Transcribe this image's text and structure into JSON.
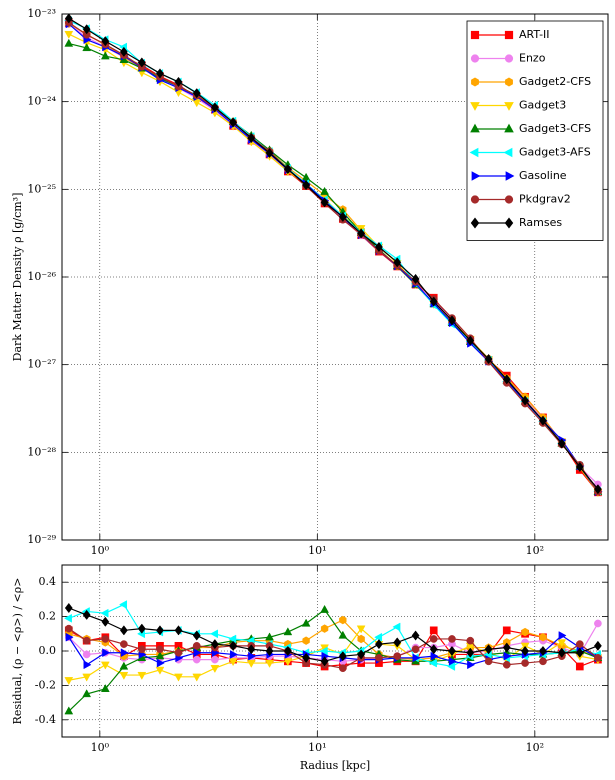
{
  "chart_data": [
    {
      "type": "line",
      "ylabel": "Dark Matter Density  ρ  [g/cm³]",
      "xlog": true,
      "ylog": true,
      "grid": true,
      "legend": "upper right",
      "xlim": [
        0.67,
        217
      ],
      "xticks": [
        {
          "value": 1,
          "label": "10⁰"
        },
        {
          "value": 10,
          "label": "10¹"
        },
        {
          "value": 100,
          "label": "10²"
        }
      ],
      "ylim": [
        1e-29,
        1e-23
      ],
      "yticks": [
        {
          "value": 1e-29,
          "label": "10⁻²⁹"
        },
        {
          "value": 1e-28,
          "label": "10⁻²⁸"
        },
        {
          "value": 1e-27,
          "label": "10⁻²⁷"
        },
        {
          "value": 1e-26,
          "label": "10⁻²⁶"
        },
        {
          "value": 1e-25,
          "label": "10⁻²⁵"
        },
        {
          "value": 1e-24,
          "label": "10⁻²⁴"
        },
        {
          "value": 1e-23,
          "label": "10⁻²³"
        }
      ],
      "x": [
        0.72,
        0.87,
        1.06,
        1.29,
        1.56,
        1.89,
        2.3,
        2.79,
        3.38,
        4.1,
        4.97,
        6.03,
        7.32,
        8.88,
        10.8,
        13.1,
        15.9,
        19.2,
        23.3,
        28.3,
        34.3,
        41.6,
        50.5,
        61.3,
        74.3,
        90.2,
        109,
        133,
        161,
        195
      ],
      "series": [
        {
          "name": "ART-II",
          "color": "#ff0000",
          "marker": "square",
          "values": [
            7.9e-24,
            5.8e-24,
            4.5e-24,
            3.2e-24,
            2.6e-24,
            1.95e-24,
            1.55e-24,
            1.13e-24,
            8.1e-25,
            5.3e-25,
            3.6e-25,
            2.5e-25,
            1.6e-25,
            1.09e-25,
            6.9e-26,
            4.6e-26,
            3e-26,
            1.95e-26,
            1.32e-26,
            8.2e-27,
            5.8e-27,
            3.1e-27,
            1.86e-27,
            1.13e-27,
            7.5e-28,
            4.3e-28,
            2.5e-28,
            1.3e-28,
            6.3e-29,
            3.5e-29
          ]
        },
        {
          "name": "Enzo",
          "color": "#ee82ee",
          "marker": "circle",
          "values": [
            7.7e-24,
            5.4e-24,
            4.2e-24,
            3.2e-24,
            2.4e-24,
            1.8e-24,
            1.43e-24,
            1.09e-24,
            7.9e-25,
            5.4e-25,
            3.6e-25,
            2.5e-25,
            1.65e-25,
            1.12e-25,
            7.2e-26,
            4.7e-26,
            3e-26,
            2e-26,
            1.36e-26,
            8.9e-27,
            5.3e-27,
            3.3e-27,
            1.88e-27,
            1.15e-27,
            6.9e-28,
            4.1e-28,
            2.4e-28,
            1.3e-28,
            6.8e-29,
            4.3e-29
          ]
        },
        {
          "name": "Gadget2-CFS",
          "color": "#ffa500",
          "marker": "hexagon",
          "values": [
            7.8e-24,
            5.9e-24,
            4.4e-24,
            3.2e-24,
            2.45e-24,
            1.86e-24,
            1.5e-24,
            1.17e-24,
            8.5e-25,
            5.9e-25,
            4e-25,
            2.75e-25,
            1.77e-25,
            1.24e-25,
            8.6e-26,
            5.9e-26,
            3.4e-26,
            2.06e-26,
            1.34e-26,
            8.3e-27,
            5e-27,
            3.17e-27,
            1.94e-27,
            1.17e-27,
            7e-28,
            4.3e-28,
            2.5e-28,
            1.31e-28,
            6.9e-29,
            3.6e-29
          ]
        },
        {
          "name": "Gadget3",
          "color": "#ffd700",
          "marker": "tri-down",
          "values": [
            5.9e-24,
            4.7e-24,
            3.9e-24,
            2.8e-24,
            2.15e-24,
            1.7e-24,
            1.28e-24,
            9.8e-25,
            7.5e-25,
            5.3e-25,
            3.5e-25,
            2.4e-25,
            1.6e-25,
            1.13e-25,
            7.8e-26,
            4.9e-26,
            3.6e-26,
            2.2e-26,
            1.44e-26,
            8.3e-27,
            4.9e-27,
            3.1e-27,
            1.96e-27,
            1.14e-27,
            6.4e-28,
            4e-28,
            2.25e-28,
            1.33e-28,
            6.7e-29,
            3.5e-29
          ]
        },
        {
          "name": "Gadget3-CFS",
          "color": "#008000",
          "marker": "tri-up",
          "values": [
            4.6e-24,
            4.1e-24,
            3.3e-24,
            3e-24,
            2.4e-24,
            1.84e-24,
            1.5e-24,
            1.17e-24,
            8.6e-25,
            5.9e-25,
            4.1e-25,
            2.8e-25,
            1.9e-25,
            1.36e-25,
            9.4e-26,
            5.5e-26,
            3.2e-26,
            2.06e-26,
            1.33e-26,
            8.2e-27,
            4.9e-27,
            3e-27,
            1.82e-27,
            1.13e-27,
            6.6e-28,
            3.8e-28,
            2.25e-28,
            1.26e-28,
            6.9e-29,
            3.55e-29
          ]
        },
        {
          "name": "Gadget3-AFS",
          "color": "#00ffff",
          "marker": "tri-left",
          "values": [
            8.4e-24,
            6.8e-24,
            5.1e-24,
            4.2e-24,
            2.75e-24,
            2.1e-24,
            1.68e-24,
            1.27e-24,
            9.1e-25,
            6e-25,
            4e-25,
            2.7e-25,
            1.73e-25,
            1.16e-25,
            7.6e-26,
            4.95e-26,
            3.2e-26,
            2.27e-26,
            1.6e-26,
            8.4e-27,
            4.8e-27,
            2.9e-27,
            1.84e-27,
            1.13e-27,
            6.4e-28,
            3.8e-28,
            2.25e-28,
            1.26e-28,
            7e-29,
            3.6e-29
          ]
        },
        {
          "name": "Gasoline",
          "color": "#0000ff",
          "marker": "tri-right",
          "values": [
            7.7e-24,
            5.1e-24,
            4.2e-24,
            3.3e-24,
            2.45e-24,
            1.77e-24,
            1.44e-24,
            1.14e-24,
            8.2e-25,
            5.5e-25,
            3.7e-25,
            2.55e-25,
            1.67e-25,
            1.15e-25,
            7.4e-26,
            4.8e-26,
            3.04e-26,
            2e-26,
            1.34e-26,
            8.4e-27,
            5e-27,
            3e-27,
            1.75e-27,
            1.09e-27,
            6.5e-28,
            3.8e-28,
            2.28e-28,
            1.38e-28,
            7e-29,
            3.55e-29
          ]
        },
        {
          "name": "Pkdgrav2",
          "color": "#a52a2a",
          "marker": "circle",
          "values": [
            8e-24,
            5.8e-24,
            4.5e-24,
            3.4e-24,
            2.5e-24,
            1.92e-24,
            1.49e-24,
            1.18e-24,
            8.5e-25,
            5.8e-25,
            3.9e-25,
            2.7e-25,
            1.7e-25,
            1.09e-25,
            7e-26,
            4.5e-26,
            3.07e-26,
            2e-26,
            1.36e-26,
            8.8e-27,
            5.6e-27,
            3.4e-27,
            2e-27,
            1.08e-27,
            6.2e-28,
            3.6e-28,
            2.16e-28,
            1.23e-28,
            7.2e-29,
            3.55e-29
          ]
        },
        {
          "name": "Ramses",
          "color": "#000000",
          "marker": "diamond",
          "values": [
            8.9e-24,
            6.7e-24,
            4.9e-24,
            3.7e-24,
            2.8e-24,
            2.1e-24,
            1.68e-24,
            1.25e-24,
            8.6e-25,
            5.8e-25,
            3.85e-25,
            2.6e-25,
            1.7e-25,
            1.12e-25,
            7.1e-26,
            4.85e-26,
            3.14e-26,
            2.2e-26,
            1.47e-26,
            9.5e-27,
            5.25e-27,
            3.2e-27,
            1.88e-27,
            1.16e-27,
            6.8e-28,
            3.9e-28,
            2.3e-28,
            1.26e-28,
            6.8e-29,
            3.8e-29
          ]
        }
      ]
    },
    {
      "type": "line",
      "ylabel": "Residual,  (ρ − <ρ>) / <ρ>",
      "xlabel": "Radius  [kpc]",
      "xlog": true,
      "ylog": false,
      "grid": true,
      "xlim": [
        0.67,
        217
      ],
      "xticks": [
        {
          "value": 1,
          "label": "10⁰"
        },
        {
          "value": 10,
          "label": "10¹"
        },
        {
          "value": 100,
          "label": "10²"
        }
      ],
      "ylim": [
        -0.5,
        0.5
      ],
      "yticks": [
        -0.4,
        -0.2,
        {
          "value": 0,
          "label": "0.0"
        },
        0.2,
        0.4
      ],
      "x": [
        0.72,
        0.87,
        1.06,
        1.29,
        1.56,
        1.89,
        2.3,
        2.79,
        3.38,
        4.1,
        4.97,
        6.03,
        7.32,
        8.88,
        10.8,
        13.1,
        15.9,
        19.2,
        23.3,
        28.3,
        34.3,
        41.6,
        50.5,
        61.3,
        74.3,
        90.2,
        109,
        133,
        161,
        195
      ],
      "series": [
        {
          "name": "ART-II",
          "color": "#ff0000",
          "marker": "square",
          "values": [
            0.12,
            0.06,
            0.08,
            -0.03,
            0.03,
            0.03,
            0.03,
            -0.02,
            -0.02,
            -0.05,
            -0.04,
            -0.05,
            -0.06,
            -0.07,
            -0.09,
            -0.08,
            -0.07,
            -0.07,
            -0.06,
            -0.06,
            0.12,
            -0.02,
            -0.02,
            -0.02,
            0.12,
            0.1,
            0.08,
            0.02,
            -0.09,
            -0.05
          ]
        },
        {
          "name": "Enzo",
          "color": "#ee82ee",
          "marker": "circle",
          "values": [
            0.08,
            -0.02,
            -0.01,
            -0.04,
            -0.05,
            -0.04,
            -0.05,
            -0.05,
            -0.05,
            -0.04,
            -0.04,
            -0.03,
            -0.03,
            -0.04,
            -0.05,
            -0.06,
            -0.05,
            -0.04,
            -0.03,
            0.02,
            0.02,
            0.04,
            -0.01,
            0.0,
            0.03,
            0.05,
            0.06,
            0.02,
            -0.02,
            0.16
          ]
        },
        {
          "name": "Gadget2-CFS",
          "color": "#ffa500",
          "marker": "hexagon",
          "values": [
            0.1,
            0.07,
            0.05,
            -0.03,
            -0.02,
            -0.02,
            0.0,
            0.02,
            0.02,
            0.05,
            0.06,
            0.06,
            0.04,
            0.06,
            0.13,
            0.18,
            0.07,
            -0.02,
            -0.04,
            -0.05,
            -0.04,
            -0.01,
            0.02,
            0.02,
            0.05,
            0.11,
            0.08,
            0.03,
            0.0,
            -0.03
          ]
        },
        {
          "name": "Gadget3",
          "color": "#ffd700",
          "marker": "tri-down",
          "values": [
            -0.17,
            -0.15,
            -0.08,
            -0.14,
            -0.14,
            -0.11,
            -0.15,
            -0.15,
            -0.1,
            -0.06,
            -0.07,
            -0.07,
            -0.06,
            -0.03,
            0.02,
            -0.02,
            0.13,
            0.04,
            0.03,
            -0.05,
            -0.06,
            -0.02,
            0.03,
            -0.01,
            -0.05,
            0.03,
            -0.02,
            0.05,
            -0.03,
            -0.05
          ]
        },
        {
          "name": "Gadget3-CFS",
          "color": "#008000",
          "marker": "tri-up",
          "values": [
            -0.35,
            -0.25,
            -0.22,
            -0.09,
            -0.04,
            -0.03,
            0.0,
            0.02,
            0.04,
            0.06,
            0.07,
            0.08,
            0.11,
            0.16,
            0.24,
            0.09,
            0.0,
            -0.02,
            -0.05,
            -0.06,
            -0.06,
            -0.05,
            -0.04,
            -0.02,
            -0.01,
            -0.02,
            -0.02,
            -0.01,
            0.0,
            -0.04
          ]
        },
        {
          "name": "Gadget3-AFS",
          "color": "#00ffff",
          "marker": "tri-left",
          "values": [
            0.19,
            0.23,
            0.22,
            0.27,
            0.1,
            0.11,
            0.12,
            0.1,
            0.1,
            0.07,
            0.06,
            0.04,
            0.02,
            -0.01,
            0.0,
            -0.01,
            0.0,
            0.08,
            0.14,
            -0.04,
            -0.07,
            -0.09,
            -0.03,
            -0.02,
            -0.04,
            -0.03,
            -0.02,
            -0.01,
            0.01,
            -0.02
          ]
        },
        {
          "name": "Gasoline",
          "color": "#0000ff",
          "marker": "tri-right",
          "values": [
            0.08,
            -0.08,
            -0.01,
            -0.01,
            -0.02,
            -0.07,
            -0.04,
            -0.01,
            -0.01,
            -0.02,
            -0.03,
            -0.02,
            -0.02,
            -0.02,
            -0.03,
            -0.04,
            -0.05,
            -0.05,
            -0.04,
            -0.04,
            -0.03,
            -0.06,
            -0.08,
            -0.05,
            -0.03,
            -0.02,
            -0.01,
            0.09,
            0.02,
            -0.04
          ]
        },
        {
          "name": "Pkdgrav2",
          "color": "#a52a2a",
          "marker": "circle",
          "values": [
            0.13,
            0.06,
            0.07,
            0.04,
            0.01,
            0.01,
            -0.01,
            0.03,
            0.02,
            0.03,
            0.03,
            0.03,
            0.0,
            -0.07,
            -0.08,
            -0.1,
            -0.04,
            -0.04,
            -0.03,
            0.01,
            0.07,
            0.07,
            0.06,
            -0.06,
            -0.08,
            -0.07,
            -0.06,
            -0.03,
            0.04,
            -0.04
          ]
        },
        {
          "name": "Ramses",
          "color": "#000000",
          "marker": "diamond",
          "values": [
            0.25,
            0.21,
            0.17,
            0.12,
            0.13,
            0.12,
            0.12,
            0.09,
            0.04,
            0.03,
            0.01,
            0.0,
            0.0,
            -0.04,
            -0.06,
            -0.03,
            -0.02,
            0.04,
            0.05,
            0.09,
            0.01,
            0.0,
            -0.01,
            0.01,
            0.02,
            0.0,
            0.0,
            -0.01,
            -0.01,
            0.03
          ]
        }
      ]
    }
  ]
}
